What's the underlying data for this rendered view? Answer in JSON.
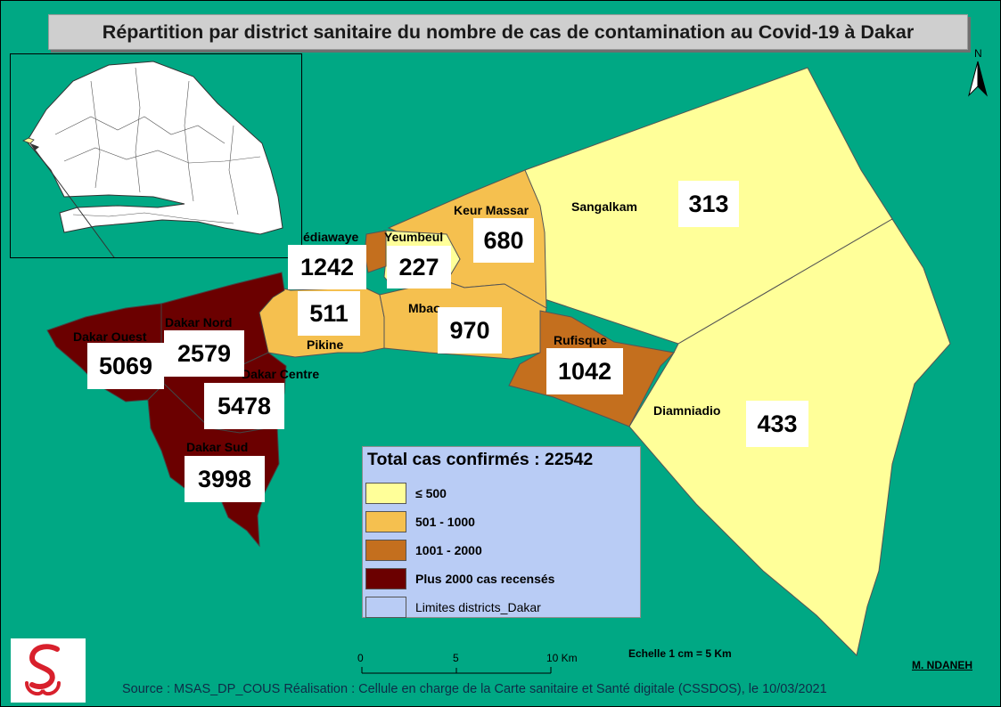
{
  "title": "Répartition par district sanitaire du nombre de cas de contamination au Covid-19 à Dakar",
  "colors": {
    "sea": "#00a884",
    "class_le_500": "#ffff99",
    "class_501_1000": "#f5c04f",
    "class_1001_2000": "#c46f1e",
    "class_over_2000": "#6b0000",
    "district_limits": "#b9ccf5"
  },
  "districts": [
    {
      "name": "Dakar Ouest",
      "cases": "5069"
    },
    {
      "name": "Dakar Nord",
      "cases": "2579"
    },
    {
      "name": "Dakar Centre",
      "cases": "5478"
    },
    {
      "name": "Dakar Sud",
      "cases": "3998"
    },
    {
      "name": "édiawaye",
      "cases": "1242"
    },
    {
      "name": "Yeumbeul",
      "cases": "227"
    },
    {
      "name": "Keur Massar",
      "cases": "680"
    },
    {
      "name": "Pikine",
      "cases": "511"
    },
    {
      "name": "Mbao",
      "cases": "970"
    },
    {
      "name": "Rufisque",
      "cases": "1042"
    },
    {
      "name": "Sangalkam",
      "cases": "313"
    },
    {
      "name": "Diamniadio",
      "cases": "433"
    }
  ],
  "legend": {
    "title": "Total cas confirmés : 22542",
    "items": [
      {
        "label": "≤ 500",
        "color": "#ffff99"
      },
      {
        "label": "501 - 1000",
        "color": "#f5c04f"
      },
      {
        "label": "1001 - 2000",
        "color": "#c46f1e"
      },
      {
        "label": "Plus 2000 cas recensés",
        "color": "#6b0000"
      },
      {
        "label": "Limites districts_Dakar",
        "color": "#b9ccf5"
      }
    ]
  },
  "scale": {
    "ticks": [
      "0",
      "5",
      "10 Km"
    ],
    "note": "Echelle 1 cm = 5 Km"
  },
  "north_label": "N",
  "author": "M. NDANEH",
  "source": "Source : MSAS_DP_COUS Réalisation : Cellule en charge de la Carte sanitaire et Santé digitale (CSSDOS),  le 10/03/2021",
  "icons": [
    "north-arrow-icon",
    "logo-icon"
  ]
}
